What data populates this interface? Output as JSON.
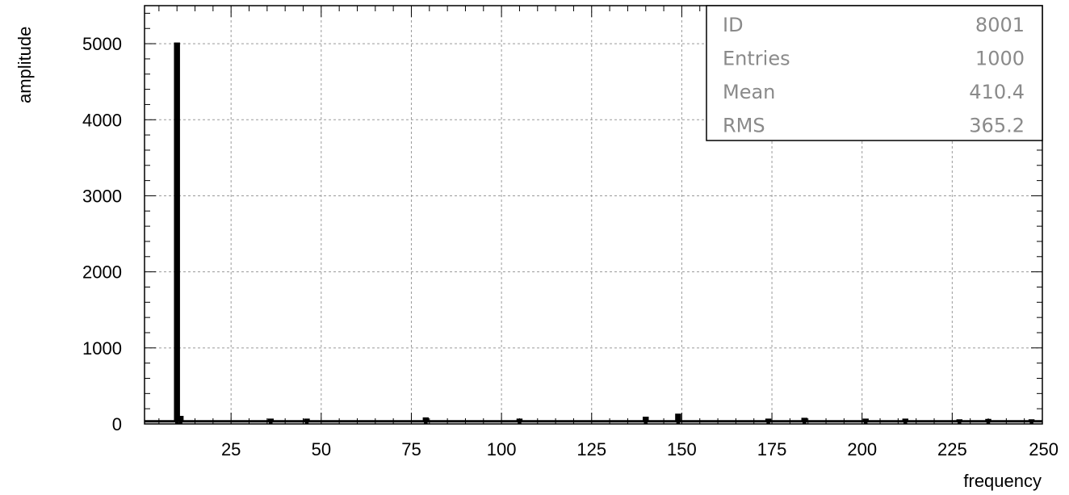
{
  "chart_data": {
    "type": "bar",
    "title": "",
    "xlabel": "frequency",
    "ylabel": "amplitude",
    "xlim": [
      1,
      250
    ],
    "ylim": [
      0,
      5500
    ],
    "grid": true,
    "x_ticks": [
      25,
      50,
      75,
      100,
      125,
      150,
      175,
      200,
      225,
      250
    ],
    "y_ticks": [
      0,
      1000,
      2000,
      3000,
      4000,
      5000
    ],
    "bin_width": 1,
    "baseline": 35,
    "bins": [
      {
        "x": 10,
        "value": 5000
      },
      {
        "x": 11,
        "value": 90
      },
      {
        "x": 36,
        "value": 55
      },
      {
        "x": 46,
        "value": 55
      },
      {
        "x": 79,
        "value": 70
      },
      {
        "x": 105,
        "value": 55
      },
      {
        "x": 140,
        "value": 80
      },
      {
        "x": 149,
        "value": 120
      },
      {
        "x": 174,
        "value": 55
      },
      {
        "x": 184,
        "value": 65
      },
      {
        "x": 201,
        "value": 55
      },
      {
        "x": 212,
        "value": 55
      },
      {
        "x": 227,
        "value": 45
      },
      {
        "x": 235,
        "value": 50
      },
      {
        "x": 247,
        "value": 45
      }
    ],
    "stats_box": {
      "position": "top-right",
      "rows": [
        {
          "label": "ID",
          "value": "8001"
        },
        {
          "label": "Entries",
          "value": "1000"
        },
        {
          "label": "Mean",
          "value": "410.4"
        },
        {
          "label": "RMS",
          "value": "365.2"
        }
      ]
    }
  }
}
